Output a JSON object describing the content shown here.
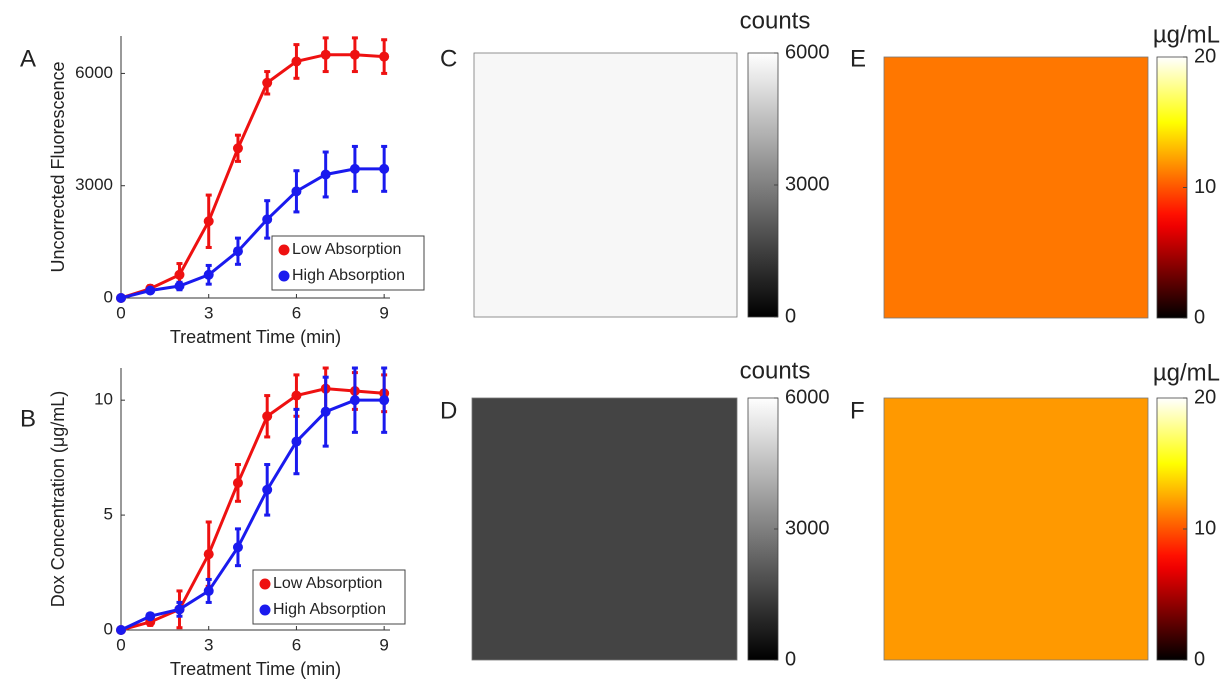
{
  "chart_data": [
    {
      "type": "line",
      "panel_label": "A",
      "xlabel": "Treatment Time (min)",
      "ylabel": "Uncorrected Fluorescence",
      "x": [
        0,
        1,
        2,
        3,
        4,
        5,
        6,
        7,
        8,
        9
      ],
      "xlim": [
        0,
        9.2
      ],
      "xticks": [
        0,
        3,
        6,
        9
      ],
      "ylim": [
        0,
        7000
      ],
      "yticks": [
        0,
        3000,
        6000
      ],
      "legend": "lower right",
      "series": [
        {
          "name": "Low Absorption",
          "color": "#ee1111",
          "values": [
            0,
            250,
            620,
            2050,
            4000,
            5750,
            6320,
            6500,
            6500,
            6450
          ],
          "errors": [
            0,
            80,
            300,
            700,
            350,
            300,
            450,
            450,
            450,
            450
          ]
        },
        {
          "name": "High Absorption",
          "color": "#1a1aee",
          "values": [
            0,
            200,
            320,
            620,
            1250,
            2100,
            2850,
            3300,
            3450,
            3450
          ],
          "errors": [
            0,
            60,
            100,
            250,
            350,
            500,
            550,
            600,
            600,
            600
          ]
        }
      ]
    },
    {
      "type": "line",
      "panel_label": "B",
      "xlabel": "Treatment Time (min)",
      "ylabel": "Dox Concentration (μg/mL)",
      "x": [
        0,
        1,
        2,
        3,
        4,
        5,
        6,
        7,
        8,
        9
      ],
      "xlim": [
        0,
        9.2
      ],
      "xticks": [
        0,
        3,
        6,
        9
      ],
      "ylim": [
        0,
        11.4
      ],
      "yticks": [
        0,
        5,
        10
      ],
      "legend": "lower right",
      "series": [
        {
          "name": "Low Absorption",
          "color": "#ee1111",
          "values": [
            0,
            0.35,
            0.9,
            3.3,
            6.4,
            9.3,
            10.2,
            10.5,
            10.4,
            10.3
          ],
          "errors": [
            0,
            0.15,
            0.8,
            1.4,
            0.8,
            0.9,
            0.9,
            0.9,
            0.8,
            0.8
          ]
        },
        {
          "name": "High Absorption",
          "color": "#1a1aee",
          "values": [
            0,
            0.6,
            0.9,
            1.7,
            3.6,
            6.1,
            8.2,
            9.5,
            10,
            10
          ],
          "errors": [
            0,
            0.1,
            0.3,
            0.5,
            0.8,
            1.1,
            1.4,
            1.5,
            1.4,
            1.4
          ]
        }
      ]
    },
    {
      "type": "image",
      "panel_label": "C",
      "value": 5800,
      "colormap": "gray",
      "clim": [
        0,
        6000
      ],
      "cticks": [
        0,
        3000,
        6000
      ],
      "colorbar_label": "counts"
    },
    {
      "type": "image",
      "panel_label": "D",
      "value": 1600,
      "colormap": "gray",
      "clim": [
        0,
        6000
      ],
      "cticks": [
        0,
        3000,
        6000
      ],
      "colorbar_label": "counts"
    },
    {
      "type": "image",
      "panel_label": "E",
      "value": 11,
      "colormap": "hot",
      "clim": [
        0,
        20
      ],
      "cticks": [
        0,
        10,
        20
      ],
      "colorbar_label": "µg/mL"
    },
    {
      "type": "image",
      "panel_label": "F",
      "value": 12,
      "colormap": "hot",
      "clim": [
        0,
        20
      ],
      "cticks": [
        0,
        10,
        20
      ],
      "colorbar_label": "µg/mL"
    }
  ]
}
